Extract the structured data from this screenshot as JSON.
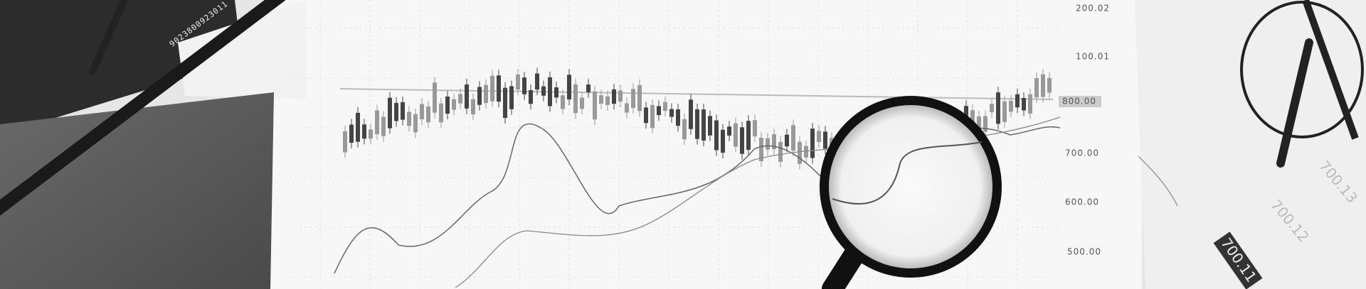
{
  "axis_labels": [
    "200.02",
    "100.01",
    "800.00",
    "700.00",
    "600.00",
    "500.00"
  ],
  "side_labels": [
    "700.11",
    "700.12",
    "700.13"
  ],
  "pencil_text": "9023800923011"
}
